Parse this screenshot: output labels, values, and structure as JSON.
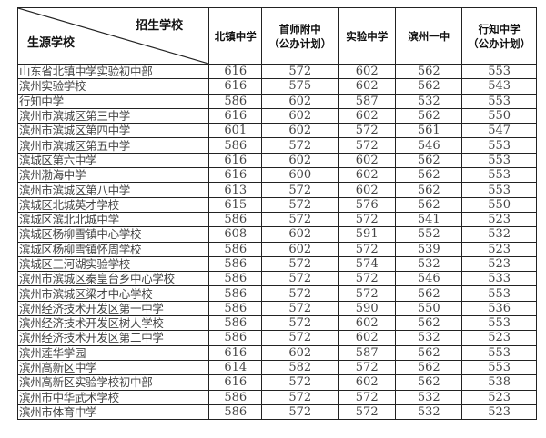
{
  "header": {
    "corner_top": "招生学校",
    "corner_bottom": "生源学校",
    "columns": [
      {
        "line1": "北镇中学",
        "line2": ""
      },
      {
        "line1": "首师附中",
        "line2": "（公办计划）"
      },
      {
        "line1": "实验中学",
        "line2": ""
      },
      {
        "line1": "滨州一中",
        "line2": ""
      },
      {
        "line1": "行知中学",
        "line2": "（公办计划）"
      }
    ]
  },
  "rows": [
    {
      "school": "山东省北镇中学实验初中部",
      "scores": [
        "616",
        "572",
        "602",
        "562",
        "553"
      ]
    },
    {
      "school": "滨州实验学校",
      "scores": [
        "616",
        "575",
        "602",
        "562",
        "543"
      ]
    },
    {
      "school": "行知中学",
      "scores": [
        "586",
        "602",
        "587",
        "532",
        "553"
      ]
    },
    {
      "school": "滨州市滨城区第三中学",
      "scores": [
        "616",
        "602",
        "602",
        "562",
        "550"
      ]
    },
    {
      "school": "滨州市滨城区第四中学",
      "scores": [
        "601",
        "602",
        "572",
        "561",
        "547"
      ]
    },
    {
      "school": "滨州市滨城区第五中学",
      "scores": [
        "586",
        "572",
        "572",
        "546",
        "553"
      ]
    },
    {
      "school": "滨城区第六中学",
      "scores": [
        "616",
        "602",
        "602",
        "562",
        "553"
      ]
    },
    {
      "school": "滨州渤海中学",
      "scores": [
        "616",
        "600",
        "602",
        "562",
        "553"
      ]
    },
    {
      "school": "滨州市滨城区第八中学",
      "scores": [
        "613",
        "572",
        "602",
        "562",
        "553"
      ]
    },
    {
      "school": "滨城区北城英才学校",
      "scores": [
        "615",
        "572",
        "576",
        "562",
        "550"
      ]
    },
    {
      "school": "滨城区滨北北城中学",
      "scores": [
        "586",
        "572",
        "572",
        "541",
        "523"
      ]
    },
    {
      "school": "滨城区杨柳雪镇中心学校",
      "scores": [
        "608",
        "602",
        "591",
        "552",
        "532"
      ]
    },
    {
      "school": "滨城区杨柳雪镇怀周学校",
      "scores": [
        "586",
        "602",
        "572",
        "539",
        "523"
      ]
    },
    {
      "school": "滨城区三河湖实验学校",
      "scores": [
        "586",
        "572",
        "574",
        "532",
        "523"
      ]
    },
    {
      "school": "滨州市滨城区秦皇台乡中心学校",
      "scores": [
        "586",
        "572",
        "572",
        "546",
        "533"
      ]
    },
    {
      "school": "滨州市滨城区梁才中心学校",
      "scores": [
        "586",
        "572",
        "572",
        "562",
        "553"
      ]
    },
    {
      "school": "滨州经济技术开发区第一中学",
      "scores": [
        "586",
        "572",
        "590",
        "550",
        "536"
      ]
    },
    {
      "school": "滨州经济技术开发区树人学校",
      "scores": [
        "586",
        "572",
        "602",
        "562",
        "553"
      ]
    },
    {
      "school": "滨州经济技术开发区第二中学",
      "scores": [
        "586",
        "572",
        "602",
        "532",
        "523"
      ]
    },
    {
      "school": "滨州莲华学园",
      "scores": [
        "616",
        "602",
        "587",
        "562",
        "553"
      ]
    },
    {
      "school": "滨州高新区中学",
      "scores": [
        "614",
        "582",
        "572",
        "562",
        "553"
      ]
    },
    {
      "school": "滨州高新区实验学校初中部",
      "scores": [
        "616",
        "572",
        "602",
        "562",
        "538"
      ]
    },
    {
      "school": "滨州市中华武术学校",
      "scores": [
        "586",
        "572",
        "572",
        "532",
        "523"
      ]
    },
    {
      "school": "滨州市体育中学",
      "scores": [
        "586",
        "572",
        "572",
        "532",
        "523"
      ]
    }
  ]
}
